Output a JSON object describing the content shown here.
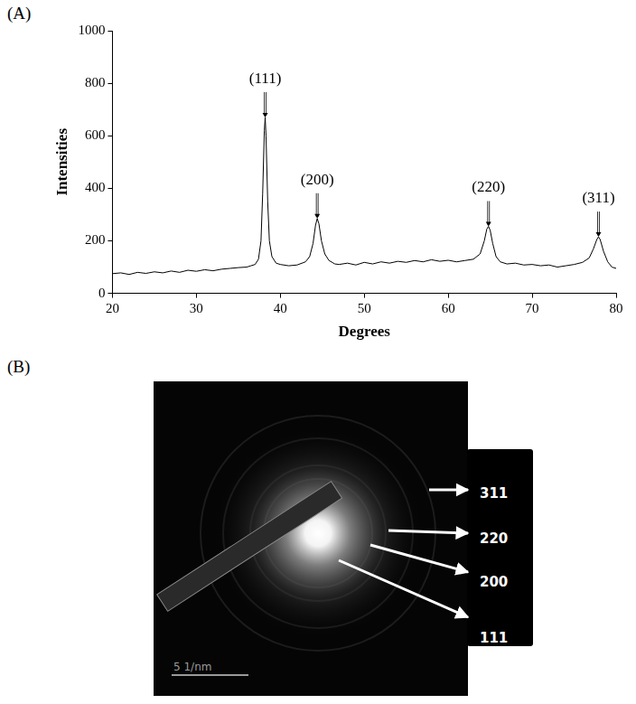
{
  "chart_data": {
    "type": "line",
    "panel_label": "(A)",
    "x_label": "Degrees",
    "y_label": "Intensities",
    "x": [
      20,
      21,
      22,
      23,
      24,
      25,
      26,
      27,
      28,
      29,
      30,
      31,
      32,
      33,
      34,
      35,
      36,
      36.5,
      37,
      37.4,
      37.7,
      37.9,
      38.1,
      38.2,
      38.3,
      38.5,
      38.7,
      39,
      39.5,
      40,
      41,
      42,
      43,
      43.5,
      43.9,
      44.2,
      44.4,
      44.6,
      44.9,
      45.3,
      45.8,
      46.5,
      47,
      48,
      49,
      50,
      51,
      52,
      53,
      54,
      55,
      56,
      57,
      58,
      59,
      60,
      61,
      62,
      63,
      63.8,
      64.3,
      64.6,
      64.8,
      65,
      65.3,
      65.7,
      66.2,
      67,
      68,
      69,
      70,
      71,
      72,
      73,
      74,
      75,
      76,
      76.8,
      77.3,
      77.7,
      77.9,
      78.1,
      78.5,
      79,
      79.5,
      80
    ],
    "values": [
      75,
      78,
      72,
      80,
      76,
      82,
      78,
      85,
      80,
      88,
      84,
      90,
      86,
      92,
      95,
      98,
      100,
      105,
      110,
      130,
      200,
      380,
      620,
      670,
      600,
      350,
      200,
      140,
      115,
      110,
      105,
      108,
      120,
      140,
      190,
      260,
      285,
      265,
      200,
      150,
      125,
      112,
      110,
      115,
      108,
      118,
      112,
      120,
      115,
      122,
      118,
      125,
      120,
      128,
      122,
      126,
      120,
      125,
      130,
      150,
      200,
      245,
      255,
      240,
      190,
      140,
      120,
      112,
      115,
      108,
      110,
      105,
      108,
      100,
      105,
      110,
      118,
      135,
      170,
      205,
      215,
      205,
      160,
      120,
      100,
      95
    ],
    "color": "#000000",
    "xlim": [
      20,
      80
    ],
    "xticks": [
      20,
      30,
      40,
      50,
      60,
      70,
      80
    ],
    "ylim": [
      0,
      1000
    ],
    "yticks": [
      0,
      200,
      400,
      600,
      800,
      1000
    ],
    "grid": false,
    "annotations": [
      {
        "text": "(111)",
        "x": 38.2
      },
      {
        "text": "(200)",
        "x": 44.4
      },
      {
        "text": "(220)",
        "x": 64.8
      },
      {
        "text": "(311)",
        "x": 77.9
      }
    ]
  },
  "panel_b": {
    "panel_label": "(B)",
    "scale_bar": "5 1/nm",
    "rings": [
      "311",
      "220",
      "200",
      "111"
    ]
  }
}
